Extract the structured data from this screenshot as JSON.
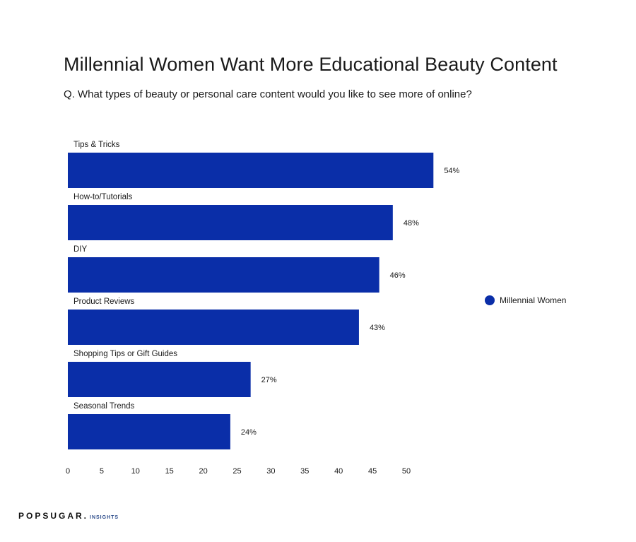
{
  "title": "Millennial Women Want More Educational Beauty Content",
  "subtitle": "Q. What types of beauty or personal care content would you like to see more of online?",
  "brand": {
    "name": "POPSUGAR.",
    "suffix": "INSIGHTS"
  },
  "colors": {
    "bar": "#0a2ea8",
    "text": "#1a1a1a"
  },
  "chart_data": {
    "type": "bar",
    "orientation": "horizontal",
    "categories": [
      "Tips & Tricks",
      "How-to/Tutorials",
      "DIY",
      "Product Reviews",
      "Shopping Tips or Gift Guides",
      "Seasonal Trends"
    ],
    "series": [
      {
        "name": "Millennial Women",
        "values": [
          54,
          48,
          46,
          43,
          27,
          24
        ],
        "value_labels": [
          "54%",
          "48%",
          "46%",
          "43%",
          "27%",
          "24%"
        ]
      }
    ],
    "x_ticks": [
      "0",
      "5",
      "10",
      "15",
      "20",
      "25",
      "30",
      "35",
      "40",
      "45",
      "50"
    ],
    "xlim": [
      0,
      50
    ],
    "grid": false,
    "legend_position": "right"
  }
}
